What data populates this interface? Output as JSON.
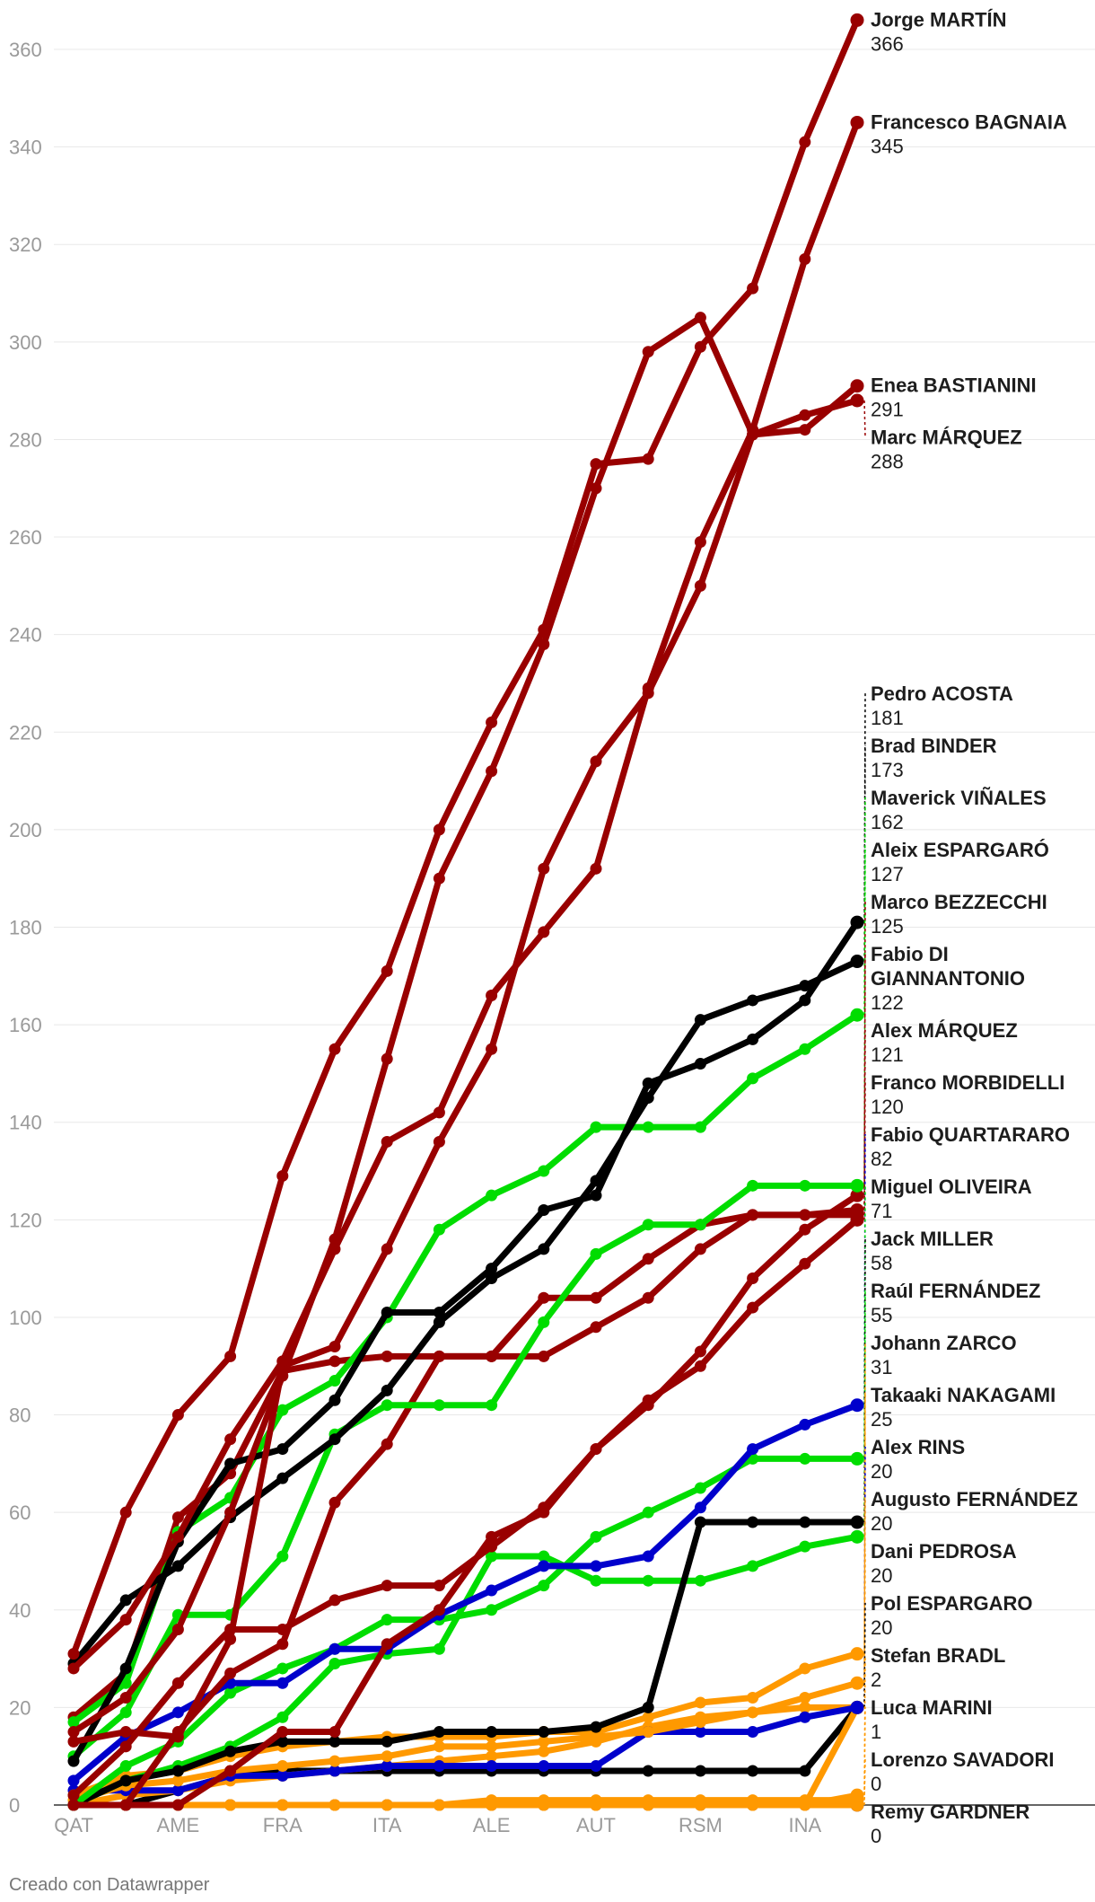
{
  "credit": "Creado con Datawrapper",
  "chart_data": {
    "type": "line",
    "title": "",
    "xlabel": "",
    "ylabel": "",
    "ylim": [
      0,
      366
    ],
    "yticks": [
      0,
      20,
      40,
      60,
      80,
      100,
      120,
      140,
      160,
      180,
      200,
      220,
      240,
      260,
      280,
      300,
      320,
      340,
      360
    ],
    "x_tick_labels": [
      "QAT",
      "AME",
      "FRA",
      "ITA",
      "ALE",
      "AUT",
      "RSM",
      "INA"
    ],
    "colors": {
      "ducati": "#990000",
      "ktm": "#000000",
      "aprilia": "#00dd00",
      "yamaha": "#0000cc",
      "other": "#ff9900"
    },
    "series": [
      {
        "name": "Jorge MARTÍN",
        "value_label": "366",
        "color": "#990000",
        "values": [
          31,
          60,
          80,
          92,
          129,
          155,
          171,
          200,
          222,
          241,
          275,
          276,
          299,
          311,
          341,
          366
        ]
      },
      {
        "name": "Francesco BAGNAIA",
        "value_label": "345",
        "color": "#990000",
        "values": [
          28,
          38,
          55,
          75,
          91,
          114,
          136,
          142,
          166,
          179,
          192,
          229,
          259,
          282,
          317,
          345
        ]
      },
      {
        "name": "Enea BASTIANINI",
        "value_label": "291",
        "color": "#990000",
        "values": [
          15,
          22,
          36,
          60,
          88,
          116,
          153,
          190,
          212,
          238,
          270,
          298,
          305,
          281,
          282,
          291
        ]
      },
      {
        "name": "Marc MÁRQUEZ",
        "value_label": "288",
        "color": "#990000",
        "values": [
          13,
          15,
          14,
          34,
          90,
          94,
          114,
          136,
          155,
          192,
          214,
          228,
          250,
          281,
          285,
          288
        ]
      },
      {
        "name": "Pedro ACOSTA",
        "value_label": "181",
        "color": "#000000",
        "values": [
          9,
          28,
          54,
          70,
          73,
          83,
          101,
          101,
          110,
          122,
          125,
          148,
          152,
          157,
          165,
          181
        ]
      },
      {
        "name": "Brad BINDER",
        "value_label": "173",
        "color": "#000000",
        "values": [
          29,
          42,
          49,
          59,
          67,
          75,
          85,
          99,
          108,
          114,
          128,
          145,
          161,
          165,
          168,
          173
        ]
      },
      {
        "name": "Maverick VIÑALES",
        "value_label": "162",
        "color": "#00dd00",
        "values": [
          17,
          25,
          56,
          63,
          81,
          87,
          100,
          118,
          125,
          130,
          139,
          139,
          139,
          149,
          155,
          162
        ]
      },
      {
        "name": "Aleix ESPARGARÓ",
        "value_label": "127",
        "color": "#00dd00",
        "values": [
          10,
          19,
          39,
          39,
          51,
          76,
          82,
          82,
          82,
          99,
          113,
          119,
          119,
          127,
          127,
          127
        ]
      },
      {
        "name": "Marco BEZZECCHI",
        "value_label": "125",
        "color": "#990000",
        "values": [
          2,
          12,
          25,
          36,
          36,
          42,
          45,
          45,
          53,
          61,
          73,
          82,
          93,
          108,
          118,
          125
        ]
      },
      {
        "name": "Fabio DI GIANNANTONIO",
        "value_label": "122",
        "color": "#990000",
        "values": [
          18,
          27,
          59,
          68,
          89,
          91,
          92,
          92,
          92,
          104,
          104,
          112,
          119,
          121,
          121,
          122
        ]
      },
      {
        "name": "Alex MÁRQUEZ",
        "value_label": "121",
        "color": "#990000",
        "values": [
          0,
          0,
          15,
          27,
          33,
          62,
          74,
          92,
          92,
          92,
          98,
          104,
          114,
          121,
          121,
          121
        ]
      },
      {
        "name": "Franco MORBIDELLI",
        "value_label": "120",
        "color": "#990000",
        "values": [
          0,
          0,
          0,
          7,
          15,
          15,
          33,
          40,
          55,
          60,
          73,
          83,
          90,
          102,
          111,
          120
        ]
      },
      {
        "name": "Fabio QUARTARARO",
        "value_label": "82",
        "color": "#0000cc",
        "values": [
          5,
          14,
          19,
          25,
          25,
          32,
          32,
          39,
          44,
          49,
          49,
          51,
          61,
          73,
          78,
          82
        ]
      },
      {
        "name": "Miguel OLIVEIRA",
        "value_label": "71",
        "color": "#00dd00",
        "values": [
          0,
          8,
          13,
          23,
          28,
          32,
          38,
          38,
          40,
          45,
          55,
          60,
          65,
          71,
          71,
          71
        ]
      },
      {
        "name": "Jack MILLER",
        "value_label": "58",
        "color": "#000000",
        "values": [
          0,
          5,
          7,
          11,
          13,
          13,
          13,
          15,
          15,
          15,
          16,
          20,
          58,
          58,
          58,
          58
        ]
      },
      {
        "name": "Raúl FERNÁNDEZ",
        "value_label": "55",
        "color": "#00dd00",
        "values": [
          0,
          5,
          8,
          12,
          18,
          29,
          31,
          32,
          51,
          51,
          46,
          46,
          46,
          49,
          53,
          55
        ]
      },
      {
        "name": "Johann ZARCO",
        "value_label": "31",
        "color": "#ff9900",
        "values": [
          2,
          6,
          7,
          10,
          12,
          13,
          14,
          14,
          14,
          15,
          15,
          18,
          21,
          22,
          28,
          31
        ]
      },
      {
        "name": "Takaaki NAKAGAMI",
        "value_label": "25",
        "color": "#ff9900",
        "values": [
          1,
          4,
          5,
          7,
          8,
          9,
          10,
          12,
          12,
          13,
          14,
          15,
          17,
          19,
          22,
          25
        ]
      },
      {
        "name": "Alex RINS",
        "value_label": "20",
        "color": "#0000cc",
        "values": [
          3,
          3,
          3,
          6,
          6,
          7,
          8,
          8,
          8,
          8,
          8,
          15,
          15,
          15,
          18,
          20
        ]
      },
      {
        "name": "Augusto FERNÁNDEZ",
        "value_label": "20",
        "color": "#ff9900",
        "values": [
          0,
          2,
          3,
          5,
          6,
          7,
          8,
          9,
          10,
          11,
          13,
          16,
          18,
          19,
          20,
          20
        ]
      },
      {
        "name": "Dani PEDROSA",
        "value_label": "20",
        "color": "#ff9900",
        "values": [
          0,
          0,
          0,
          0,
          0,
          0,
          0,
          0,
          0,
          0,
          0,
          0,
          0,
          0,
          0,
          20
        ]
      },
      {
        "name": "Pol ESPARGARO",
        "value_label": "20",
        "color": "#000000",
        "values": [
          0,
          0,
          3,
          6,
          7,
          7,
          7,
          7,
          7,
          7,
          7,
          7,
          7,
          7,
          7,
          20
        ]
      },
      {
        "name": "Stefan BRADL",
        "value_label": "2",
        "color": "#ff9900",
        "values": [
          0,
          0,
          0,
          0,
          0,
          0,
          0,
          0,
          0,
          0,
          0,
          0,
          0,
          0,
          0,
          2
        ]
      },
      {
        "name": "Luca MARINI",
        "value_label": "1",
        "color": "#ff9900",
        "values": [
          0,
          0,
          0,
          0,
          0,
          0,
          0,
          0,
          1,
          1,
          1,
          1,
          1,
          1,
          1,
          1
        ]
      },
      {
        "name": "Lorenzo SAVADORI",
        "value_label": "0",
        "color": "#ff9900",
        "values": [
          0,
          0,
          0,
          0,
          0,
          0,
          0,
          0,
          0,
          0,
          0,
          0,
          0,
          0,
          0,
          0
        ]
      },
      {
        "name": "Remy GARDNER",
        "value_label": "0",
        "color": "#0000cc",
        "values": [
          0,
          0,
          0,
          0,
          0,
          0,
          0,
          0,
          0,
          0,
          0,
          0,
          0,
          0,
          0,
          0
        ]
      }
    ]
  }
}
